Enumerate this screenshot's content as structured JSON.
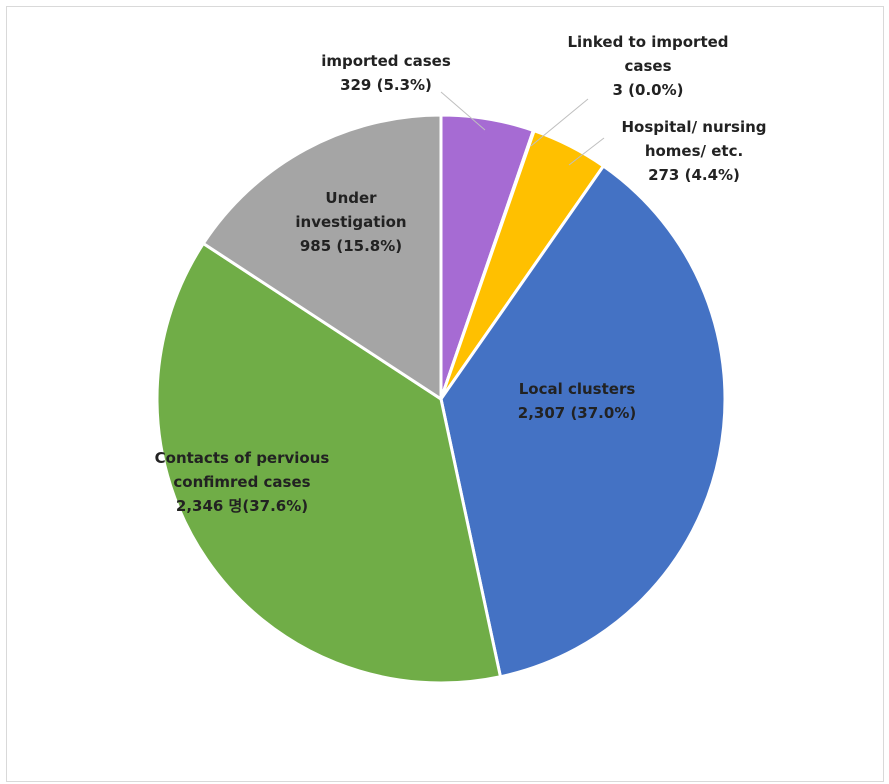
{
  "chart_data": {
    "type": "pie",
    "title": "",
    "slices": [
      {
        "label_lines": [
          "imported cases",
          "329  (5.3%)"
        ],
        "value": 329,
        "percent": 5.3,
        "color": "#A66BD3"
      },
      {
        "label_lines": [
          "Linked to imported",
          "cases",
          "3 (0.0%)"
        ],
        "value": 3,
        "percent": 0.0,
        "color": "#E0E0E0"
      },
      {
        "label_lines": [
          "Hospital/ nursing",
          "homes/ etc.",
          "273  (4.4%)"
        ],
        "value": 273,
        "percent": 4.4,
        "color": "#FFC000"
      },
      {
        "label_lines": [
          "Local clusters",
          "2,307  (37.0%)"
        ],
        "value": 2307,
        "percent": 37.0,
        "color": "#4472C4"
      },
      {
        "label_lines": [
          "Contacts of pervious",
          "confimred cases",
          "2,346 명(37.6%)"
        ],
        "value": 2346,
        "percent": 37.6,
        "color": "#70AD47"
      },
      {
        "label_lines": [
          "Under",
          "investigation",
          "985  (15.8%)"
        ],
        "value": 985,
        "percent": 15.8,
        "color": "#A5A5A5"
      }
    ],
    "start_angle_deg": 0,
    "direction": "clockwise",
    "legend": "none"
  }
}
